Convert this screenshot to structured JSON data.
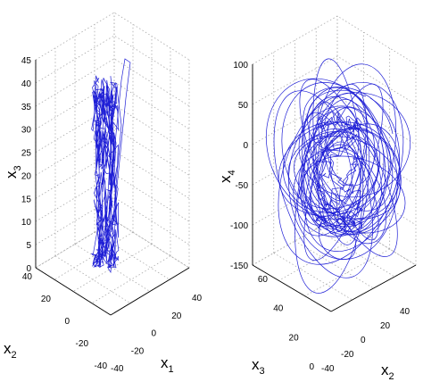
{
  "chart_data": [
    {
      "type": "line",
      "variant": "3d-trajectory",
      "title": "",
      "axes": {
        "x": {
          "label": "x",
          "sub": "1",
          "ticks": [
            "-40",
            "-20",
            "0",
            "20",
            "40"
          ],
          "lim": [
            -40,
            40
          ]
        },
        "y": {
          "label": "x",
          "sub": "2",
          "ticks": [
            "-40",
            "-20",
            "0",
            "20",
            "40"
          ],
          "lim": [
            -40,
            40
          ]
        },
        "z": {
          "label": "x",
          "sub": "3",
          "ticks": [
            "0",
            "5",
            "10",
            "15",
            "20",
            "25",
            "30",
            "35",
            "40",
            "45"
          ],
          "lim": [
            0,
            45
          ]
        }
      },
      "grid": true,
      "color": "#1f1fd6"
    },
    {
      "type": "line",
      "variant": "3d-trajectory",
      "title": "",
      "axes": {
        "x": {
          "label": "x",
          "sub": "2",
          "ticks": [
            "-40",
            "-20",
            "0",
            "20",
            "40"
          ],
          "lim": [
            -40,
            40
          ]
        },
        "y": {
          "label": "x",
          "sub": "3",
          "ticks": [
            "0",
            "20",
            "40",
            "60"
          ],
          "lim": [
            0,
            60
          ]
        },
        "z": {
          "label": "x",
          "sub": "4",
          "ticks": [
            "-150",
            "-100",
            "-50",
            "0",
            "50",
            "100"
          ],
          "lim": [
            -150,
            100
          ]
        }
      },
      "grid": true,
      "color": "#1f1fd6"
    }
  ]
}
